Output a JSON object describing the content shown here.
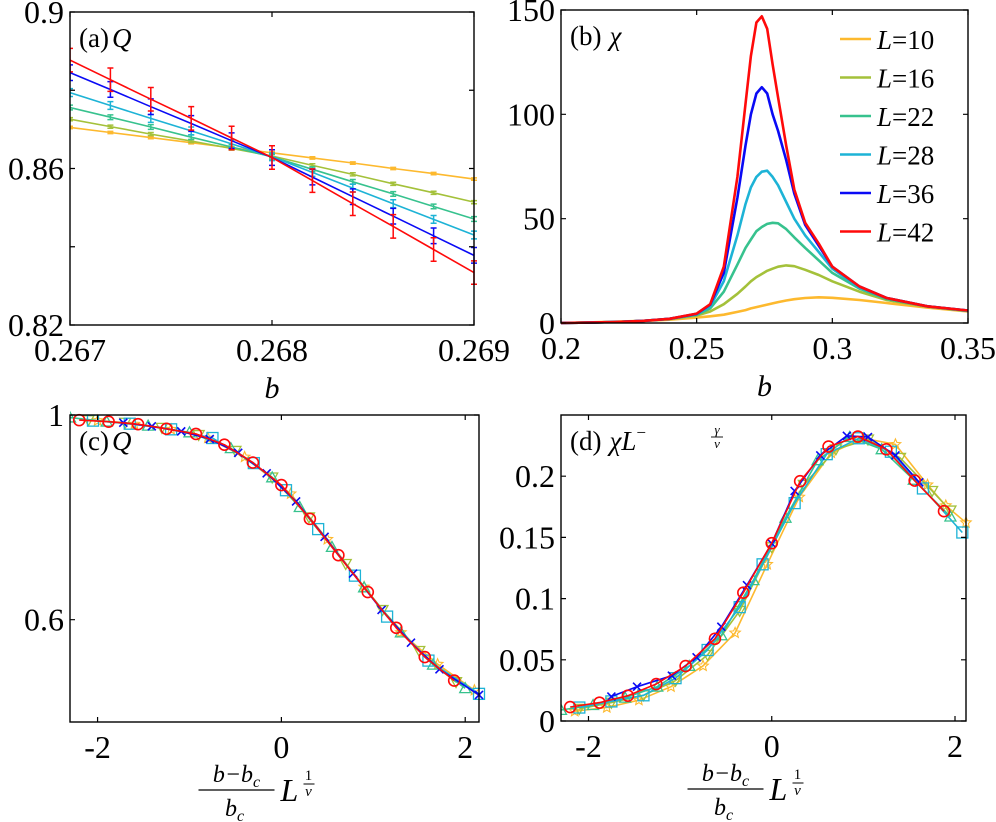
{
  "colors": {
    "L=10": "#FDB92E",
    "L=16": "#A4C13A",
    "L=22": "#37C28E",
    "L=28": "#1DB3D6",
    "L=36": "#0A0AF5",
    "L=42": "#FF0A0A"
  },
  "chart_data": [
    {
      "panel": "a",
      "type": "line",
      "label": "(a)",
      "label_symbol": "Q",
      "xlabel": "b",
      "xlim": [
        0.267,
        0.269
      ],
      "ylim": [
        0.82,
        0.9
      ],
      "xticks": [
        0.267,
        0.268,
        0.269
      ],
      "xtick_labels": [
        "0.267",
        "0.268",
        "0.269"
      ],
      "yticks": [
        0.82,
        0.84,
        0.86,
        0.88,
        0.9
      ],
      "ytick_labels": [
        "0.82",
        "",
        "0.86",
        "",
        "0.9"
      ],
      "x": [
        0.267,
        0.2672,
        0.2674,
        0.2676,
        0.2678,
        0.268,
        0.2682,
        0.2684,
        0.2686,
        0.2688,
        0.269
      ],
      "series": [
        {
          "name": "L=10",
          "values": [
            0.8705,
            0.8692,
            0.8679,
            0.8666,
            0.8653,
            0.864,
            0.8627,
            0.8614,
            0.86,
            0.8587,
            0.8573
          ],
          "error": 0.0003
        },
        {
          "name": "L=16",
          "values": [
            0.8726,
            0.8707,
            0.8688,
            0.867,
            0.8651,
            0.8632,
            0.8608,
            0.8585,
            0.8561,
            0.8538,
            0.8514
          ],
          "error": 0.0004
        },
        {
          "name": "L=22",
          "values": [
            0.8756,
            0.8731,
            0.8706,
            0.868,
            0.8655,
            0.863,
            0.8598,
            0.8566,
            0.8535,
            0.8503,
            0.8471
          ],
          "error": 0.0006
        },
        {
          "name": "L=28",
          "values": [
            0.8794,
            0.8761,
            0.8728,
            0.8696,
            0.8663,
            0.863,
            0.859,
            0.855,
            0.851,
            0.847,
            0.843
          ],
          "error": 0.001
        },
        {
          "name": "L=36",
          "values": [
            0.8845,
            0.8802,
            0.8758,
            0.8715,
            0.8671,
            0.8628,
            0.8578,
            0.8528,
            0.8478,
            0.8428,
            0.8378
          ],
          "error": 0.002
        },
        {
          "name": "L=42",
          "values": [
            0.8877,
            0.8827,
            0.8777,
            0.8728,
            0.8678,
            0.8628,
            0.8569,
            0.851,
            0.8452,
            0.8393,
            0.8334
          ],
          "error": 0.003
        }
      ]
    },
    {
      "panel": "b",
      "type": "line",
      "label": "(b)",
      "label_symbol": "χ",
      "xlabel": "b",
      "xlim": [
        0.2,
        0.35
      ],
      "ylim": [
        0,
        150
      ],
      "xticks": [
        0.2,
        0.25,
        0.3,
        0.35
      ],
      "xtick_labels": [
        "0.2",
        "0.25",
        "0.3",
        "0.35"
      ],
      "yticks": [
        0,
        50,
        100,
        150
      ],
      "ytick_labels": [
        "0",
        "50",
        "100",
        "150"
      ],
      "legend": "top-right",
      "x": [
        0.2,
        0.21,
        0.22,
        0.23,
        0.24,
        0.25,
        0.255,
        0.26,
        0.265,
        0.268,
        0.27,
        0.272,
        0.274,
        0.276,
        0.278,
        0.28,
        0.283,
        0.286,
        0.29,
        0.295,
        0.3,
        0.31,
        0.32,
        0.335,
        0.35
      ],
      "series": [
        {
          "name": "L=10",
          "values": [
            0,
            0.3,
            0.6,
            1,
            1.6,
            2.6,
            3.2,
            4,
            5.3,
            6.2,
            7,
            7.6,
            8.2,
            8.8,
            9.4,
            10,
            10.8,
            11.4,
            12,
            12.3,
            12.1,
            11,
            9.6,
            7.4,
            5.5
          ]
        },
        {
          "name": "L=16",
          "values": [
            0,
            0.2,
            0.5,
            1,
            1.8,
            3.6,
            5.5,
            9,
            14,
            17.5,
            20,
            22,
            23.5,
            25,
            26,
            27,
            27.6,
            27.2,
            25.5,
            23,
            20,
            15,
            11,
            7.8,
            5.8
          ]
        },
        {
          "name": "L=22",
          "values": [
            0,
            0.2,
            0.5,
            1,
            2,
            4,
            7,
            15,
            28,
            36,
            40,
            44,
            46,
            47.5,
            48,
            47.8,
            45,
            41,
            36,
            30,
            24,
            16.5,
            11.5,
            8,
            5.8
          ]
        },
        {
          "name": "L=28",
          "values": [
            0,
            0.2,
            0.5,
            1,
            2,
            4.2,
            8,
            20,
            42,
            57,
            65,
            70,
            72.5,
            73,
            70,
            66,
            58,
            50,
            42,
            34,
            26,
            17,
            12,
            8,
            6
          ]
        },
        {
          "name": "L=36",
          "values": [
            0,
            0.2,
            0.5,
            1,
            2,
            4.4,
            8.8,
            24,
            60,
            85,
            100,
            110,
            113,
            110,
            100,
            92,
            78,
            62,
            47,
            37,
            27,
            17.5,
            12,
            8,
            6
          ]
        },
        {
          "name": "L=42",
          "values": [
            0,
            0.2,
            0.5,
            1,
            2,
            4.5,
            9,
            27,
            70,
            105,
            128,
            144,
            147,
            141,
            124,
            108,
            85,
            64,
            48,
            38,
            27,
            17.5,
            12,
            8,
            6
          ]
        }
      ]
    },
    {
      "panel": "c",
      "type": "line",
      "label": "(c)",
      "label_symbol": "Q",
      "xlabel": {
        "numerator": "b−b",
        "numerator_sub": "c",
        "denominator": "b",
        "denominator_sub": "c",
        "factor": "L",
        "exponent_num": "1",
        "exponent_den": "ν"
      },
      "xlim": [
        -2.3,
        2.15
      ],
      "ylim": [
        0.4,
        1.0
      ],
      "xticks": [
        -2,
        0,
        2
      ],
      "xtick_labels": [
        "-2",
        "0",
        "2"
      ],
      "yticks": [
        0.6,
        1.0
      ],
      "ytick_labels": [
        "0.6",
        "1"
      ],
      "series": [
        {
          "name": "L=10",
          "marker": "star",
          "x": [
            -2.0,
            -1.6,
            -1.2,
            -0.8,
            -0.4,
            0.1,
            0.5,
            0.9,
            1.3,
            1.7,
            2.1
          ],
          "values": [
            0.989,
            0.982,
            0.972,
            0.955,
            0.918,
            0.846,
            0.757,
            0.664,
            0.575,
            0.513,
            0.462
          ]
        },
        {
          "name": "L=16",
          "marker": "triangle-down",
          "x": [
            -2.1,
            -1.7,
            -1.3,
            -0.9,
            -0.5,
            -0.1,
            0.3,
            0.7,
            1.1,
            1.5,
            1.9
          ],
          "values": [
            0.99,
            0.985,
            0.975,
            0.961,
            0.93,
            0.878,
            0.8,
            0.709,
            0.619,
            0.539,
            0.478
          ]
        },
        {
          "name": "L=22",
          "marker": "triangle-up",
          "x": [
            -2.3,
            -1.9,
            -1.45,
            -1.0,
            -0.55,
            -0.1,
            0.2,
            0.55,
            0.9,
            1.3,
            1.65,
            2.0
          ],
          "values": [
            0.995,
            0.987,
            0.979,
            0.966,
            0.935,
            0.878,
            0.82,
            0.742,
            0.663,
            0.575,
            0.512,
            0.466
          ]
        },
        {
          "name": "L=28",
          "marker": "square",
          "x": [
            -2.05,
            -1.65,
            -1.2,
            -0.75,
            -0.3,
            0.05,
            0.4,
            0.8,
            1.15,
            1.6,
            2.15
          ],
          "values": [
            0.989,
            0.983,
            0.972,
            0.955,
            0.906,
            0.853,
            0.777,
            0.686,
            0.606,
            0.52,
            0.455
          ]
        },
        {
          "name": "L=36",
          "marker": "x",
          "x": [
            -1.72,
            -1.41,
            -1.09,
            -0.78,
            -0.47,
            -0.16,
            0.16,
            0.47,
            0.78,
            1.09,
            1.41,
            1.72,
            2.15
          ],
          "values": [
            0.985,
            0.978,
            0.968,
            0.953,
            0.926,
            0.886,
            0.831,
            0.762,
            0.69,
            0.619,
            0.555,
            0.503,
            0.453
          ]
        },
        {
          "name": "L=42",
          "marker": "circle",
          "x": [
            -2.2,
            -1.88,
            -1.56,
            -1.25,
            -0.93,
            -0.62,
            -0.31,
            0,
            0.31,
            0.62,
            0.94,
            1.25,
            1.56,
            1.88
          ],
          "values": [
            0.99,
            0.987,
            0.982,
            0.973,
            0.963,
            0.942,
            0.907,
            0.863,
            0.797,
            0.726,
            0.654,
            0.584,
            0.527,
            0.481
          ]
        }
      ]
    },
    {
      "panel": "d",
      "type": "line",
      "label": "(d)",
      "label_symbol": "χL",
      "label_exponent": {
        "sign": "−",
        "num": "γ",
        "den": "ν"
      },
      "xlabel": {
        "numerator": "b−b",
        "numerator_sub": "c",
        "denominator": "b",
        "denominator_sub": "c",
        "factor": "L",
        "exponent_num": "1",
        "exponent_den": "ν"
      },
      "xlim": [
        -2.3,
        2.12
      ],
      "ylim": [
        0,
        0.25
      ],
      "xticks": [
        -2,
        0,
        2
      ],
      "xtick_labels": [
        "-2",
        "0",
        "2"
      ],
      "yticks": [
        0,
        0.05,
        0.1,
        0.15,
        0.2
      ],
      "ytick_labels": [
        "0",
        "0.05",
        "0.1",
        "0.15",
        "0.2"
      ],
      "series": [
        {
          "name": "L=10",
          "marker": "star",
          "x": [
            -2.15,
            -1.8,
            -1.45,
            -1.1,
            -0.75,
            -0.4,
            -0.05,
            0.3,
            0.65,
            1.0,
            1.35,
            1.7,
            1.9,
            2.12
          ],
          "values": [
            0.008,
            0.011,
            0.017,
            0.028,
            0.045,
            0.072,
            0.128,
            0.183,
            0.219,
            0.231,
            0.226,
            0.193,
            0.176,
            0.162
          ]
        },
        {
          "name": "L=16",
          "marker": "triangle-down",
          "x": [
            -2.1,
            -1.75,
            -1.4,
            -1.05,
            -0.7,
            -0.35,
            0.0,
            0.35,
            0.7,
            1.05,
            1.4,
            1.75,
            1.95
          ],
          "values": [
            0.01,
            0.015,
            0.021,
            0.033,
            0.054,
            0.09,
            0.142,
            0.193,
            0.222,
            0.23,
            0.215,
            0.188,
            0.172
          ]
        },
        {
          "name": "L=22",
          "marker": "triangle-up",
          "x": [
            -2.3,
            -1.95,
            -1.6,
            -1.25,
            -0.9,
            -0.55,
            -0.2,
            0.15,
            0.5,
            0.85,
            1.2,
            1.55,
            1.95
          ],
          "values": [
            0.009,
            0.013,
            0.019,
            0.028,
            0.045,
            0.07,
            0.115,
            0.166,
            0.213,
            0.232,
            0.222,
            0.197,
            0.167
          ]
        },
        {
          "name": "L=28",
          "marker": "square",
          "x": [
            -2.1,
            -1.75,
            -1.4,
            -1.05,
            -0.7,
            -0.35,
            -0.1,
            0.25,
            0.6,
            0.95,
            1.3,
            1.65,
            2.08
          ],
          "values": [
            0.011,
            0.016,
            0.021,
            0.035,
            0.058,
            0.093,
            0.128,
            0.178,
            0.218,
            0.231,
            0.22,
            0.19,
            0.154
          ]
        },
        {
          "name": "L=36",
          "marker": "x",
          "x": [
            -1.75,
            -1.47,
            -1.09,
            -0.82,
            -0.55,
            -0.27,
            0,
            0.25,
            0.53,
            0.82,
            1.05,
            1.35,
            1.61
          ],
          "values": [
            0.02,
            0.028,
            0.037,
            0.052,
            0.077,
            0.111,
            0.145,
            0.188,
            0.217,
            0.233,
            0.232,
            0.217,
            0.195
          ]
        },
        {
          "name": "L=42",
          "marker": "circle",
          "x": [
            -2.2,
            -1.88,
            -1.57,
            -1.26,
            -0.94,
            -0.62,
            -0.31,
            0,
            0.31,
            0.62,
            0.94,
            1.25,
            1.56,
            1.88
          ],
          "values": [
            0.0114,
            0.015,
            0.0207,
            0.0302,
            0.0449,
            0.0672,
            0.1048,
            0.1453,
            0.1959,
            0.2242,
            0.2324,
            0.222,
            0.1964,
            0.1714
          ]
        }
      ]
    }
  ]
}
